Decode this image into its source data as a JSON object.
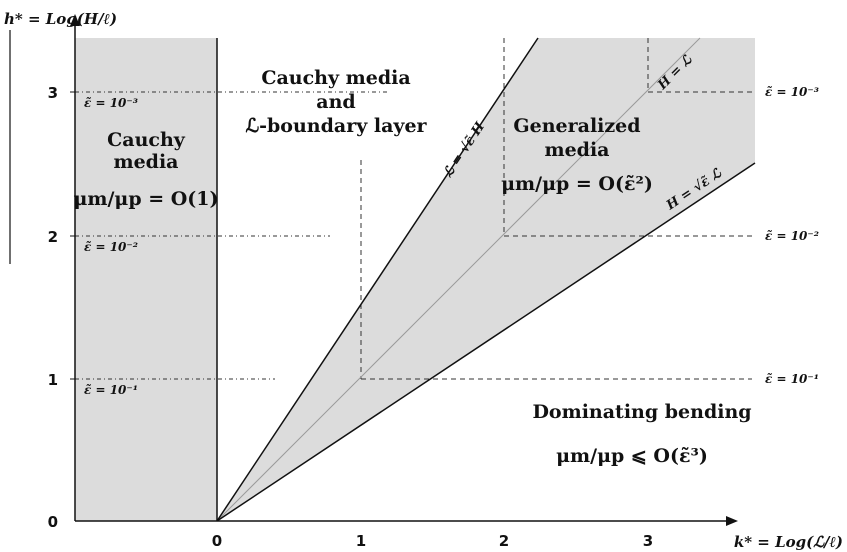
{
  "axes": {
    "y_label": "h* = Log(H/ℓ)",
    "x_label": "k* = Log(ℒ/ℓ)",
    "x_ticks": [
      "0",
      "1",
      "2",
      "3"
    ],
    "y_ticks": [
      "0",
      "1",
      "2",
      "3"
    ]
  },
  "regions": {
    "cauchy_left": {
      "line1": "Cauchy",
      "line2": "media",
      "ratio": "μm/μp = O(1)"
    },
    "cauchy_boundary": {
      "line1": "Cauchy media",
      "line2": "and",
      "line3": "ℒ-boundary layer"
    },
    "generalized": {
      "line1": "Generalized",
      "line2": "media",
      "ratio": "μm/μp = O(ε̃²)"
    },
    "dominating": {
      "line1": "Dominating bending",
      "ratio": "μm/μp ⩽ O(ε̃³)"
    }
  },
  "epsilon_labels": {
    "left": [
      "ε̃ = 10⁻³",
      "ε̃ = 10⁻²",
      "ε̃ = 10⁻¹"
    ],
    "right": [
      "ε̃ = 10⁻³",
      "ε̃ = 10⁻²",
      "ε̃ = 10⁻¹"
    ]
  },
  "line_labels": {
    "steep": "ℒ = √ε̃ H",
    "diagonal": "H = ℒ",
    "shallow": "H = √ε̃ ℒ"
  },
  "colors": {
    "shade": "#dcdcdc",
    "line": "#111111",
    "dashed": "#333333",
    "diagonal": "#9a9a9a"
  }
}
